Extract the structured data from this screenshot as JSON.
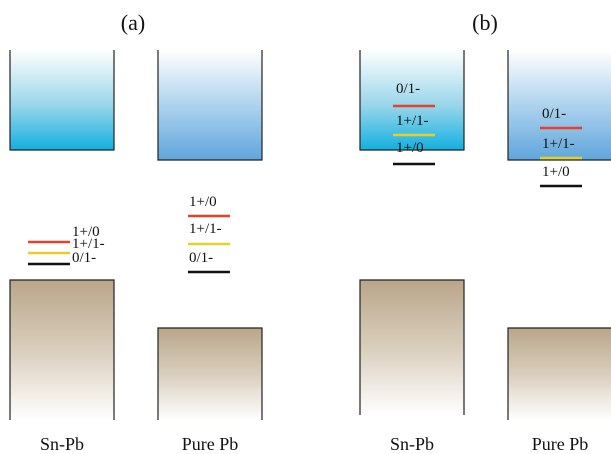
{
  "panels": [
    {
      "label": "(a)",
      "columns": [
        {
          "name": "Sn-Pb",
          "levels": [
            "1+/0",
            "1+/1-",
            "0/1-"
          ]
        },
        {
          "name": "Pure Pb",
          "levels": [
            "1+/0",
            "1+/1-",
            "0/1-"
          ]
        }
      ]
    },
    {
      "label": "(b)",
      "columns": [
        {
          "name": "Sn-Pb",
          "levels": [
            "0/1-",
            "1+/1-",
            "1+/0"
          ]
        },
        {
          "name": "Pure Pb",
          "levels": [
            "0/1-",
            "1+/1-",
            "1+/0"
          ]
        }
      ]
    }
  ]
}
